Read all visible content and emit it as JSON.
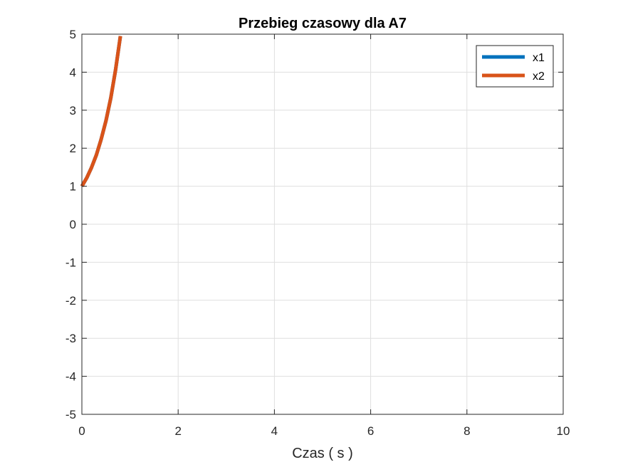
{
  "chart_data": {
    "type": "line",
    "title": "Przebieg czasowy dla A7",
    "xlabel": "Czas ( s )",
    "ylabel": "",
    "xlim": [
      0,
      10
    ],
    "ylim": [
      -5,
      5
    ],
    "xticks": [
      "0",
      "2",
      "4",
      "6",
      "8",
      "10"
    ],
    "yticks": [
      "5",
      "4",
      "3",
      "2",
      "1",
      "0",
      "-1",
      "-2",
      "-3",
      "-4",
      "-5"
    ],
    "grid": true,
    "legend_position": "top-right",
    "series": [
      {
        "name": "x1",
        "color": "#0072BD",
        "x": [
          0,
          0.1,
          0.2,
          0.3,
          0.4,
          0.5,
          0.6,
          0.7,
          0.8
        ],
        "y": [
          1.0,
          1.22,
          1.49,
          1.82,
          2.23,
          2.72,
          3.32,
          4.06,
          4.95
        ]
      },
      {
        "name": "x2",
        "color": "#D95319",
        "x": [
          0,
          0.1,
          0.2,
          0.3,
          0.4,
          0.5,
          0.6,
          0.7,
          0.8
        ],
        "y": [
          1.0,
          1.22,
          1.49,
          1.82,
          2.23,
          2.72,
          3.32,
          4.06,
          4.95
        ]
      }
    ]
  }
}
